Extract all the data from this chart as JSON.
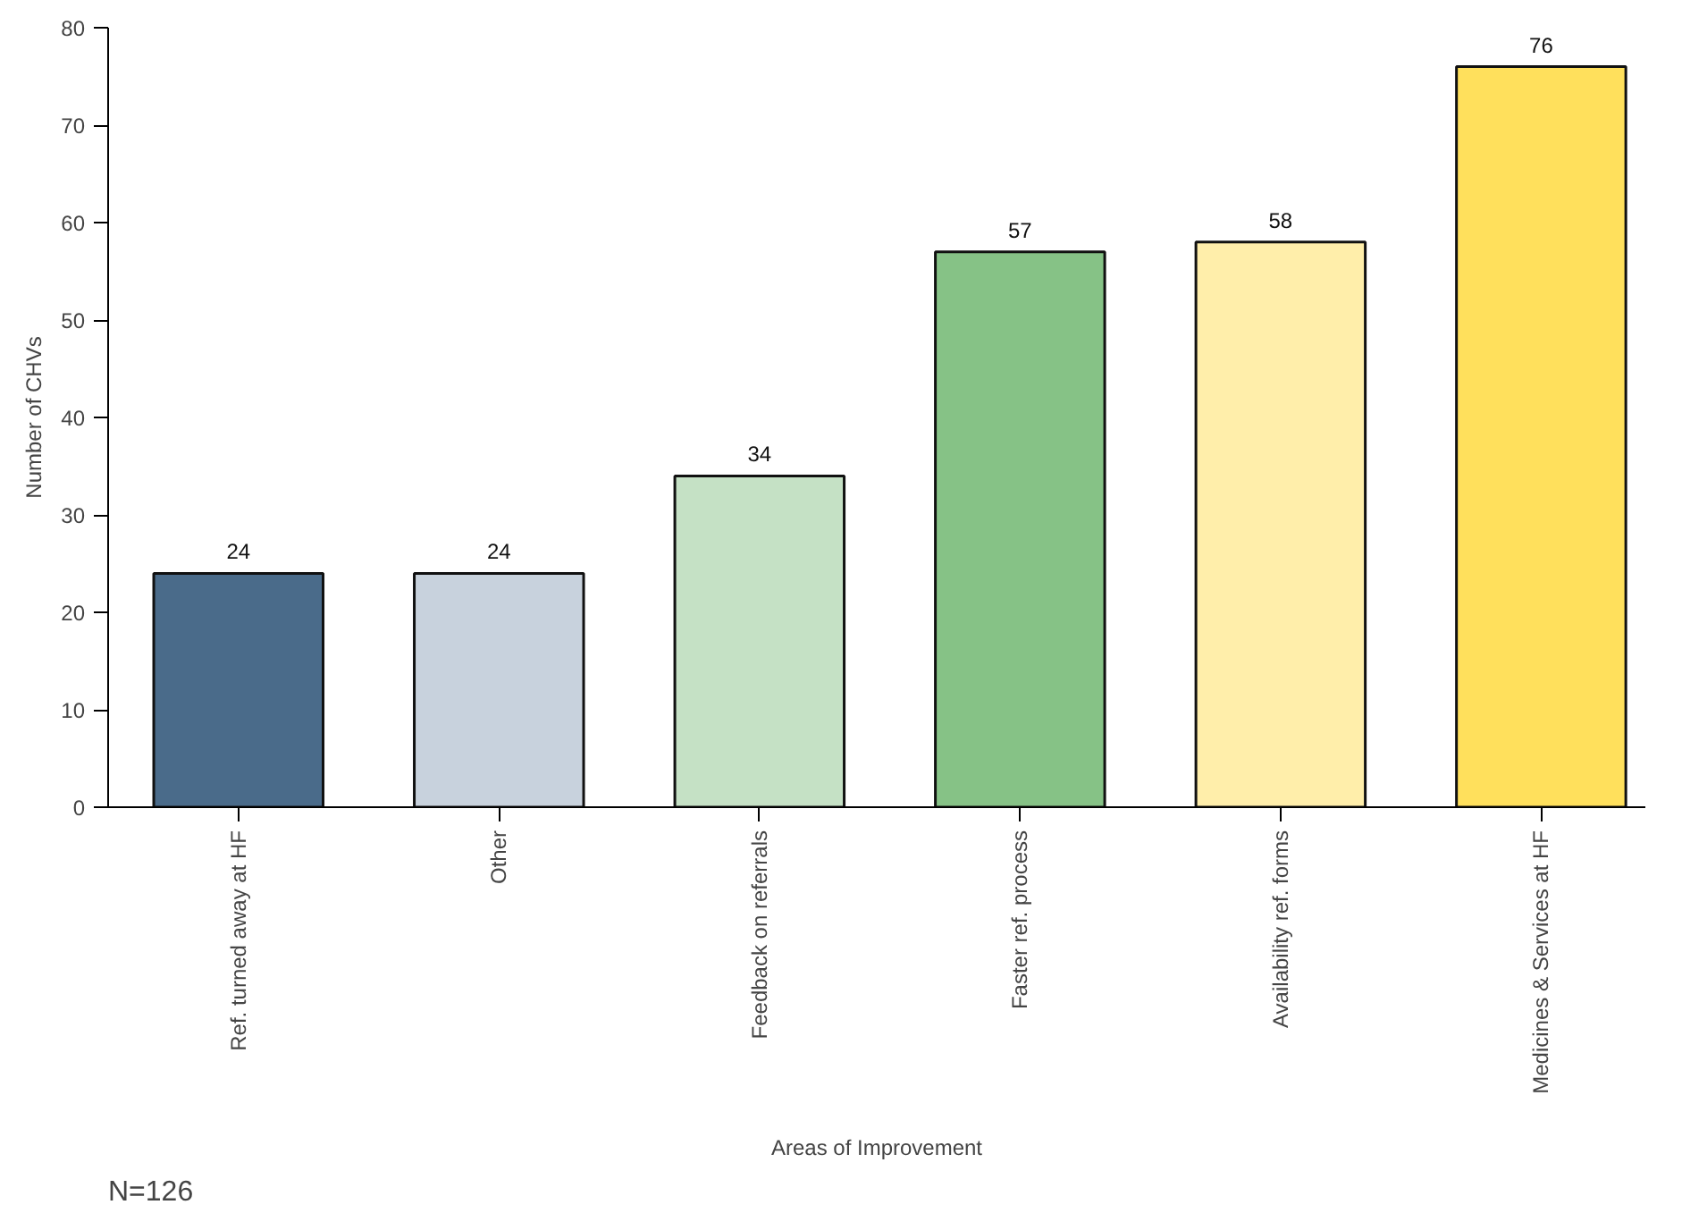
{
  "chart_data": {
    "type": "bar",
    "xlabel": "Areas of Improvement",
    "ylabel": "Number of CHVs",
    "categories": [
      "Ref. turned away at HF",
      "Other",
      "Feedback on referrals",
      "Faster ref. process",
      "Availability ref. forms",
      "Medicines & Services at HF"
    ],
    "values": [
      24,
      24,
      34,
      57,
      58,
      76
    ],
    "colors": [
      "#4a6b8a",
      "#c8d2dd",
      "#c5e1c5",
      "#86c286",
      "#ffeeaa",
      "#ffe05c"
    ],
    "ylim": [
      0,
      80
    ],
    "yticks": [
      0,
      10,
      20,
      30,
      40,
      50,
      60,
      70,
      80
    ],
    "data_labels": true,
    "grid": false,
    "annotations": [
      "N=126"
    ]
  }
}
